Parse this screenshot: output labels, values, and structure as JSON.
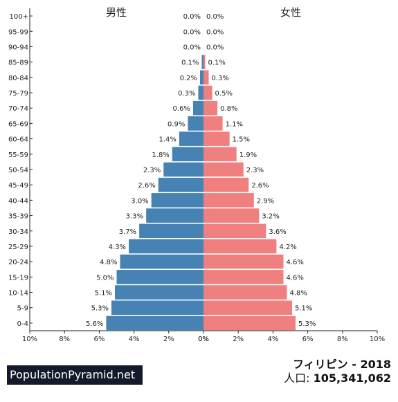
{
  "chart_data": {
    "type": "bar",
    "orientation": "horizontal",
    "layout": "population-pyramid",
    "categories": [
      "100+",
      "95-99",
      "90-94",
      "85-89",
      "80-84",
      "75-79",
      "70-74",
      "65-69",
      "60-64",
      "55-59",
      "50-54",
      "45-49",
      "40-44",
      "35-39",
      "30-34",
      "25-29",
      "20-24",
      "15-19",
      "10-14",
      "5-9",
      "0-4"
    ],
    "series": [
      {
        "name": "男性",
        "side": "left",
        "color": "#4682b4",
        "values": [
          0.0,
          0.0,
          0.0,
          0.1,
          0.2,
          0.3,
          0.6,
          0.9,
          1.4,
          1.8,
          2.3,
          2.6,
          3.0,
          3.3,
          3.7,
          4.3,
          4.8,
          5.0,
          5.1,
          5.3,
          5.6
        ],
        "labels": [
          "0.0%",
          "0.0%",
          "0.0%",
          "0.1%",
          "0.2%",
          "0.3%",
          "0.6%",
          "0.9%",
          "1.4%",
          "1.8%",
          "2.3%",
          "2.6%",
          "3.0%",
          "3.3%",
          "3.7%",
          "4.3%",
          "4.8%",
          "5.0%",
          "5.1%",
          "5.3%",
          "5.6%"
        ]
      },
      {
        "name": "女性",
        "side": "right",
        "color": "#f08080",
        "values": [
          0.0,
          0.0,
          0.0,
          0.1,
          0.3,
          0.5,
          0.8,
          1.1,
          1.5,
          1.9,
          2.3,
          2.6,
          2.9,
          3.2,
          3.6,
          4.2,
          4.6,
          4.6,
          4.8,
          5.1,
          5.3
        ],
        "labels": [
          "0.0%",
          "0.0%",
          "0.0%",
          "0.1%",
          "0.3%",
          "0.5%",
          "0.8%",
          "1.1%",
          "1.5%",
          "1.9%",
          "2.3%",
          "2.6%",
          "2.9%",
          "3.2%",
          "3.6%",
          "4.2%",
          "4.6%",
          "4.6%",
          "4.8%",
          "5.1%",
          "5.3%"
        ]
      }
    ],
    "xlim": [
      0,
      10
    ],
    "x_ticks_left": [
      "10%",
      "8%",
      "6%",
      "4%",
      "2%",
      "0%"
    ],
    "x_ticks_right": [
      "0%",
      "2%",
      "4%",
      "6%",
      "8%",
      "10%"
    ],
    "grid": false
  },
  "brand": "PopulationPyramid.net",
  "title": {
    "country_year": "フィリピン - 2018",
    "population_label": "人口: ",
    "population_value": "105,341,062"
  },
  "colors": {
    "male": "#4682b4",
    "female": "#f08080",
    "brand_bg": "#141a2b"
  }
}
